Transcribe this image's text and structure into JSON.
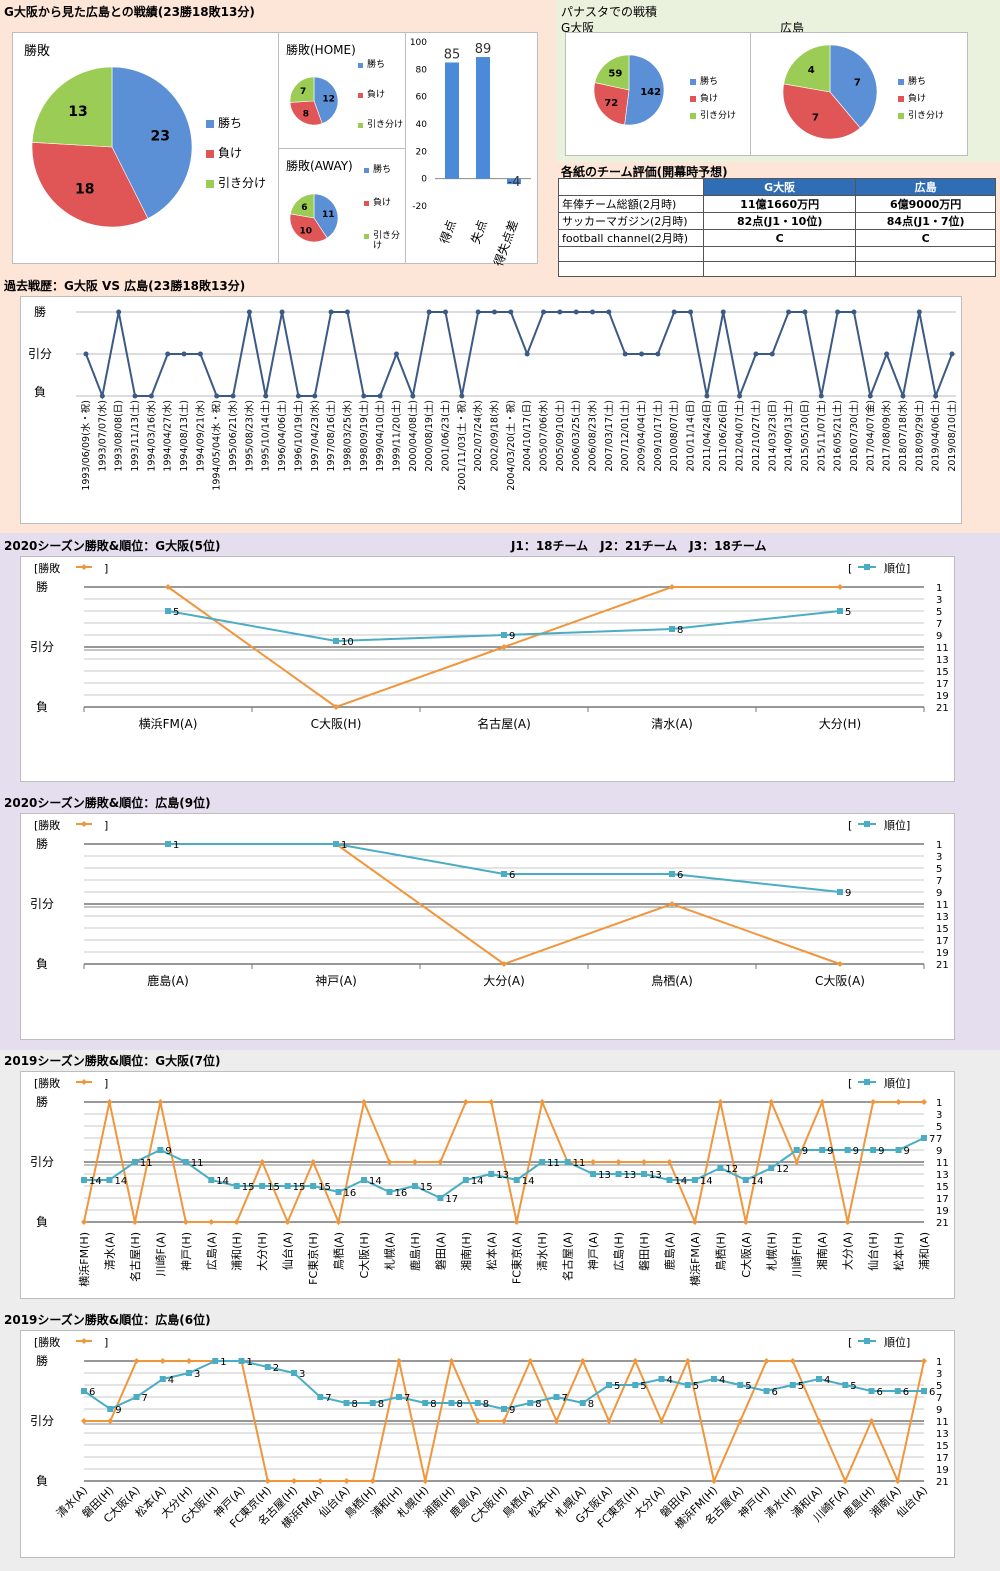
{
  "section_titles": {
    "record": "G大阪から見た広島との戦績(23勝18敗13分)",
    "panasta": "パナスタでの戦積",
    "panasta_left": "G大阪",
    "panasta_right": "広島",
    "evaluation": "各紙のチーム評価(開幕時予想)",
    "history": "過去戦歴：G大阪 VS 広島(23勝18敗13分)",
    "s2020_gosaka": "2020シーズン勝敗&順位：G大阪(5位)",
    "league_note": "J1：18チーム　J2：21チーム　J3：18チーム",
    "s2020_hiroshima": "2020シーズン勝敗&順位：広島(9位)",
    "s2019_gosaka": "2019シーズン勝敗&順位：G大阪(7位)",
    "s2019_hiroshima": "2019シーズン勝敗&順位：広島(6位)"
  },
  "colors": {
    "win": "#5b8fd6",
    "loss": "#e05555",
    "draw": "#9bcc55",
    "rank_line": "#4badc3",
    "result_line": "#f0963c",
    "history_line": "#3b5a85",
    "bar": "#4a8ad8",
    "table_header": "#2f6db5",
    "band_peach": "#fde6d8",
    "band_lavender": "#e4deee",
    "band_gray": "#ededed"
  },
  "legend_labels": {
    "win": "勝ち",
    "loss": "負け",
    "draw": "引き分け",
    "draw_wrapped": [
      "引き分",
      "け"
    ]
  },
  "line_legend": {
    "result": "[勝敗",
    "result_close": "]",
    "rank_open": "[",
    "rank": "順位]"
  },
  "y_result_labels": [
    "勝",
    "引分",
    "負"
  ],
  "rank_ticks": [
    1,
    3,
    5,
    7,
    9,
    11,
    13,
    15,
    17,
    19,
    21
  ],
  "chart_data": [
    {
      "type": "pie",
      "name": "pie_total",
      "title": "勝敗",
      "labels": [
        "勝ち",
        "負け",
        "引き分け"
      ],
      "values": [
        23,
        18,
        13
      ]
    },
    {
      "type": "pie",
      "name": "pie_home",
      "title": "勝敗(HOME)",
      "labels": [
        "勝ち",
        "負け",
        "引き分け"
      ],
      "values": [
        12,
        8,
        7
      ]
    },
    {
      "type": "pie",
      "name": "pie_away",
      "title": "勝敗(AWAY)",
      "labels": [
        "勝ち",
        "負け",
        "引き分け"
      ],
      "values": [
        11,
        10,
        6
      ]
    },
    {
      "type": "bar",
      "name": "goals",
      "categories": [
        "得点",
        "失点",
        "得失点差"
      ],
      "values": [
        85,
        89,
        -4
      ],
      "data_labels": [
        "85",
        "89",
        "-4"
      ],
      "ylim": [
        -20,
        100
      ],
      "yticks": [
        -20,
        0,
        20,
        40,
        60,
        80,
        100
      ]
    },
    {
      "type": "pie",
      "name": "pie_panasta_gosaka",
      "labels": [
        "勝ち",
        "負け",
        "引き分け"
      ],
      "values": [
        142,
        72,
        59
      ]
    },
    {
      "type": "pie",
      "name": "pie_panasta_hiroshima",
      "labels": [
        "勝ち",
        "負け",
        "引き分け"
      ],
      "values": [
        7,
        7,
        4
      ]
    },
    {
      "type": "table",
      "name": "evaluation",
      "columns": [
        "",
        "G大阪",
        "広島"
      ],
      "rows": [
        [
          "年俸チーム総額(2月時)",
          "11億1660万円",
          "6億9000万円"
        ],
        [
          "サッカーマガジン(2月時)",
          "82点(J1・10位)",
          "84点(J1・7位)"
        ],
        [
          "football channel(2月時)",
          "C",
          "C"
        ],
        [
          "",
          "",
          ""
        ],
        [
          "",
          "",
          ""
        ]
      ]
    },
    {
      "type": "line",
      "name": "history",
      "x": [
        "1993/06/09(水・祝)",
        "1993/07/07(水)",
        "1993/08/08(日)",
        "1993/11/13(土)",
        "1994/03/16(水)",
        "1994/04/27(水)",
        "1994/08/13(土)",
        "1994/09/21(水)",
        "1994/05/04(水・祝)",
        "1995/06/21(水)",
        "1995/08/23(水)",
        "1995/10/14(土)",
        "1996/04/06(土)",
        "1996/10/19(土)",
        "1997/04/23(水)",
        "1997/08/16(土)",
        "1998/03/25(水)",
        "1998/09/19(土)",
        "1999/04/10(土)",
        "1999/11/20(土)",
        "2000/04/08(土)",
        "2000/08/19(土)",
        "2001/06/23(土)",
        "2001/11/03(土・祝)",
        "2002/07/24(水)",
        "2002/09/18(水)",
        "2004/03/20(土・祝)",
        "2004/10/17(日)",
        "2005/07/06(水)",
        "2005/09/10(土)",
        "2006/03/25(土)",
        "2006/08/23(水)",
        "2007/03/17(土)",
        "2007/12/01(土)",
        "2009/04/04(土)",
        "2009/10/17(土)",
        "2010/08/07(土)",
        "2010/11/14(日)",
        "2011/04/24(日)",
        "2011/06/26(日)",
        "2012/04/07(土)",
        "2012/10/27(土)",
        "2014/03/23(日)",
        "2014/09/13(土)",
        "2015/05/10(日)",
        "2015/11/07(土)",
        "2016/05/21(土)",
        "2016/07/30(土)",
        "2017/04/07(金)",
        "2017/08/09(水)",
        "2018/07/18(水)",
        "2018/09/29(土)",
        "2019/04/06(土)",
        "2019/08/10(土)"
      ],
      "y": [
        0,
        -1,
        1,
        -1,
        -1,
        0,
        0,
        0,
        -1,
        -1,
        1,
        -1,
        1,
        -1,
        -1,
        1,
        1,
        -1,
        -1,
        0,
        -1,
        1,
        1,
        -1,
        1,
        1,
        1,
        0,
        1,
        1,
        1,
        1,
        1,
        0,
        0,
        0,
        1,
        1,
        -1,
        1,
        -1,
        0,
        0,
        1,
        1,
        -1,
        1,
        1,
        -1,
        0,
        -1,
        1,
        -1,
        0
      ],
      "y_labels": [
        "勝",
        "引分",
        "負"
      ]
    },
    {
      "type": "line",
      "name": "s2020_gosaka",
      "x": [
        "横浜FM(A)",
        "C大阪(H)",
        "名古屋(A)",
        "清水(A)",
        "大分(H)"
      ],
      "series": [
        {
          "name": "勝敗",
          "values": [
            1,
            -1,
            0,
            1,
            1
          ]
        },
        {
          "name": "順位",
          "values": [
            5,
            10,
            9,
            8,
            5
          ]
        }
      ]
    },
    {
      "type": "line",
      "name": "s2020_hiroshima",
      "x": [
        "鹿島(A)",
        "神戸(A)",
        "大分(A)",
        "鳥栖(A)",
        "C大阪(A)"
      ],
      "series": [
        {
          "name": "勝敗",
          "values": [
            1,
            1,
            -1,
            0,
            -1
          ]
        },
        {
          "name": "順位",
          "values": [
            1,
            1,
            6,
            6,
            9
          ]
        }
      ]
    },
    {
      "type": "line",
      "name": "s2019_gosaka",
      "x": [
        "横浜FM(H)",
        "清水(A)",
        "名古屋(H)",
        "川崎F(A)",
        "神戸(H)",
        "広島(A)",
        "浦和(H)",
        "大分(H)",
        "仙台(A)",
        "FC東京(H)",
        "鳥栖(A)",
        "C大阪(H)",
        "札幌(A)",
        "鹿島(H)",
        "磐田(A)",
        "湘南(H)",
        "松本(A)",
        "FC東京(A)",
        "清水(H)",
        "名古屋(A)",
        "神戸(A)",
        "広島(H)",
        "磐田(H)",
        "鹿島(A)",
        "横浜FM(A)",
        "鳥栖(H)",
        "C大阪(A)",
        "札幌(H)",
        "川崎F(H)",
        "湘南(A)",
        "大分(A)",
        "仙台(H)",
        "松本(H)",
        "浦和(A)"
      ],
      "series": [
        {
          "name": "勝敗",
          "values": [
            -1,
            1,
            -1,
            1,
            -1,
            -1,
            -1,
            0,
            -1,
            0,
            -1,
            1,
            0,
            0,
            0,
            1,
            1,
            -1,
            1,
            0,
            0,
            0,
            0,
            0,
            -1,
            1,
            -1,
            1,
            0,
            1,
            -1,
            1,
            1,
            1
          ]
        },
        {
          "name": "順位",
          "values": [
            14,
            14,
            11,
            9,
            11,
            14,
            15,
            15,
            15,
            15,
            16,
            14,
            16,
            15,
            17,
            14,
            13,
            14,
            11,
            11,
            13,
            13,
            13,
            14,
            14,
            12,
            14,
            12,
            9,
            9,
            9,
            9,
            9,
            7
          ]
        }
      ]
    },
    {
      "type": "line",
      "name": "s2019_hiroshima",
      "x": [
        "清水(A)",
        "磐田(H)",
        "C大阪(A)",
        "松本(A)",
        "大分(H)",
        "G大阪(H)",
        "神戸(A)",
        "FC東京(H)",
        "名古屋(H)",
        "横浜FM(A)",
        "仙台(A)",
        "鳥栖(H)",
        "浦和(H)",
        "札幌(H)",
        "湘南(H)",
        "鹿島(A)",
        "C大阪(H)",
        "鳥栖(A)",
        "松本(H)",
        "札幌(A)",
        "G大阪(A)",
        "FC東京(H)",
        "大分(A)",
        "磐田(A)",
        "横浜FM(H)",
        "名古屋(A)",
        "神戸(H)",
        "清水(H)",
        "浦和(A)",
        "川崎F(A)",
        "鹿島(H)",
        "湘南(A)",
        "仙台(A)"
      ],
      "series": [
        {
          "name": "勝敗",
          "values": [
            0,
            0,
            1,
            1,
            1,
            1,
            1,
            -1,
            -1,
            -1,
            -1,
            -1,
            1,
            -1,
            1,
            0,
            0,
            1,
            0,
            1,
            0,
            1,
            0,
            1,
            -1,
            0,
            1,
            1,
            0,
            -1,
            0,
            -1,
            1
          ]
        },
        {
          "name": "順位",
          "values": [
            6,
            9,
            7,
            4,
            3,
            1,
            1,
            2,
            3,
            7,
            8,
            8,
            7,
            8,
            8,
            8,
            9,
            8,
            7,
            8,
            5,
            5,
            4,
            5,
            4,
            5,
            6,
            5,
            4,
            5,
            6,
            6,
            6
          ]
        }
      ]
    }
  ]
}
